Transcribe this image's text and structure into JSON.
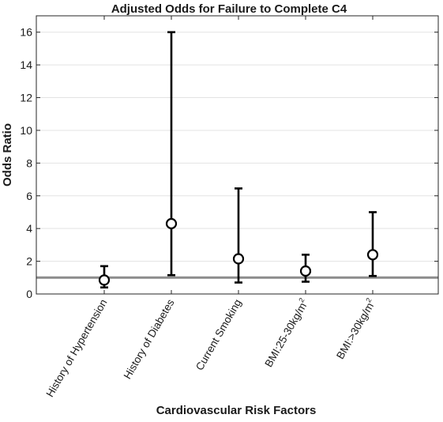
{
  "chart_data": {
    "type": "scatter",
    "title": "Adjusted Odds for Failure to Complete C4",
    "xlabel": "Cardiovascular Risk Factors",
    "ylabel": "Odds Ratio",
    "ylim": [
      0,
      17
    ],
    "yticks": [
      0,
      2,
      4,
      6,
      8,
      10,
      12,
      14,
      16
    ],
    "grid": "horizontal",
    "reference_line": 1,
    "categories": [
      {
        "label": "History of Hypertension",
        "sup": ""
      },
      {
        "label": "History of Diabetes",
        "sup": ""
      },
      {
        "label": "Current Smoking",
        "sup": ""
      },
      {
        "label": "BMI:25-30kg/m",
        "sup": "2"
      },
      {
        "label": "BMI:>30kg/m",
        "sup": "2"
      }
    ],
    "points": [
      {
        "or": 0.85,
        "lower": 0.4,
        "upper": 1.7
      },
      {
        "or": 4.3,
        "lower": 1.15,
        "upper": 16.0
      },
      {
        "or": 2.15,
        "lower": 0.7,
        "upper": 6.45
      },
      {
        "or": 1.4,
        "lower": 0.75,
        "upper": 2.4
      },
      {
        "or": 2.4,
        "lower": 1.1,
        "upper": 5.0
      }
    ]
  }
}
